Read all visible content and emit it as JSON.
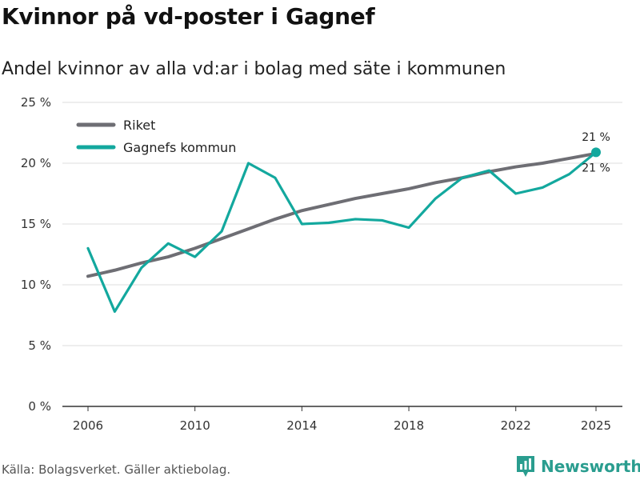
{
  "title": "Kvinnor på vd-poster i Gagnef",
  "subtitle": "Andel kvinnor av alla vd:ar i bolag med säte i kommunen",
  "source": "Källa: Bolagsverket. Gäller aktiebolag.",
  "brand": "Newsworthy",
  "colors": {
    "riket": "#6e6e74",
    "gagnef": "#13a89e",
    "grid": "#dddddd",
    "brand": "#2a9d8f"
  },
  "chart_data": {
    "type": "line",
    "title": "Kvinnor på vd-poster i Gagnef",
    "subtitle": "Andel kvinnor av alla vd:ar i bolag med säte i kommunen",
    "xlabel": "",
    "ylabel": "",
    "xlim": [
      2006,
      2025
    ],
    "ylim": [
      0,
      25
    ],
    "x_ticks": [
      2006,
      2010,
      2014,
      2018,
      2022,
      2025
    ],
    "y_ticks": [
      0,
      5,
      10,
      15,
      20,
      25
    ],
    "y_tick_labels": [
      "0 %",
      "5 %",
      "10 %",
      "15 %",
      "20 %",
      "25 %"
    ],
    "x": [
      2006,
      2007,
      2008,
      2009,
      2010,
      2011,
      2012,
      2013,
      2014,
      2015,
      2016,
      2017,
      2018,
      2019,
      2020,
      2021,
      2022,
      2023,
      2024,
      2025
    ],
    "legend_position": "top-left",
    "series": [
      {
        "name": "Riket",
        "color": "#6e6e74",
        "values": [
          10.7,
          11.2,
          11.8,
          12.3,
          13.0,
          13.8,
          14.6,
          15.4,
          16.1,
          16.6,
          17.1,
          17.5,
          17.9,
          18.4,
          18.8,
          19.3,
          19.7,
          20.0,
          20.4,
          20.8
        ],
        "end_label": "21 %"
      },
      {
        "name": "Gagnefs kommun",
        "color": "#13a89e",
        "values": [
          13.0,
          7.8,
          11.4,
          13.4,
          12.3,
          14.4,
          20.0,
          18.8,
          15.0,
          15.1,
          15.4,
          15.3,
          14.7,
          17.1,
          18.8,
          19.4,
          17.5,
          18.0,
          19.1,
          20.9
        ],
        "end_label": "21 %"
      }
    ]
  }
}
